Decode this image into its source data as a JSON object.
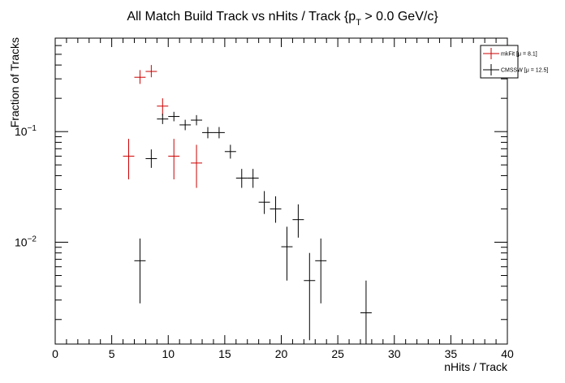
{
  "chart_data": {
    "type": "scatter",
    "title_main": "All Match Build Track vs nHits / Track {p",
    "title_sub": "T",
    "title_end": " > 0.0 GeV/c}",
    "xlabel": "nHits / Track",
    "ylabel": "Fraction of Tracks",
    "xlim": [
      0,
      40
    ],
    "ylim": [
      0.0012,
      0.7
    ],
    "yscale": "log",
    "x_ticks": [
      0,
      5,
      10,
      15,
      20,
      25,
      30,
      35,
      40
    ],
    "x_tick_labels": [
      "0",
      "5",
      "10",
      "15",
      "20",
      "25",
      "30",
      "35",
      "40"
    ],
    "y_major": [
      {
        "value": 0.1,
        "base": "10",
        "exp": "−1"
      },
      {
        "value": 0.01,
        "base": "10",
        "exp": "−2"
      }
    ],
    "legend_position": "top-right",
    "series": [
      {
        "name": "mkFit",
        "legend_stat": "[μ =  8.1]",
        "color": "#cc0000",
        "points": [
          {
            "x": 6.5,
            "y": 0.06,
            "ylo": 0.037,
            "yhi": 0.086
          },
          {
            "x": 7.5,
            "y": 0.31,
            "ylo": 0.27,
            "yhi": 0.36
          },
          {
            "x": 8.5,
            "y": 0.35,
            "ylo": 0.31,
            "yhi": 0.4
          },
          {
            "x": 9.5,
            "y": 0.17,
            "ylo": 0.14,
            "yhi": 0.2
          },
          {
            "x": 10.5,
            "y": 0.06,
            "ylo": 0.037,
            "yhi": 0.086
          },
          {
            "x": 12.5,
            "y": 0.052,
            "ylo": 0.031,
            "yhi": 0.076
          }
        ]
      },
      {
        "name": "CMSSW",
        "legend_stat": "[μ = 12.5]",
        "color": "#000000",
        "points": [
          {
            "x": 7.5,
            "y": 0.0068,
            "ylo": 0.0028,
            "yhi": 0.0108
          },
          {
            "x": 8.5,
            "y": 0.057,
            "ylo": 0.047,
            "yhi": 0.069
          },
          {
            "x": 9.5,
            "y": 0.13,
            "ylo": 0.117,
            "yhi": 0.145
          },
          {
            "x": 10.5,
            "y": 0.137,
            "ylo": 0.124,
            "yhi": 0.151
          },
          {
            "x": 11.5,
            "y": 0.115,
            "ylo": 0.103,
            "yhi": 0.128
          },
          {
            "x": 12.5,
            "y": 0.127,
            "ylo": 0.114,
            "yhi": 0.141
          },
          {
            "x": 13.5,
            "y": 0.098,
            "ylo": 0.087,
            "yhi": 0.11
          },
          {
            "x": 14.5,
            "y": 0.098,
            "ylo": 0.087,
            "yhi": 0.11
          },
          {
            "x": 15.5,
            "y": 0.066,
            "ylo": 0.057,
            "yhi": 0.076
          },
          {
            "x": 16.5,
            "y": 0.038,
            "ylo": 0.031,
            "yhi": 0.046
          },
          {
            "x": 17.5,
            "y": 0.038,
            "ylo": 0.031,
            "yhi": 0.046
          },
          {
            "x": 18.5,
            "y": 0.023,
            "ylo": 0.018,
            "yhi": 0.029
          },
          {
            "x": 19.5,
            "y": 0.02,
            "ylo": 0.015,
            "yhi": 0.026
          },
          {
            "x": 20.5,
            "y": 0.0091,
            "ylo": 0.0045,
            "yhi": 0.0138
          },
          {
            "x": 21.5,
            "y": 0.016,
            "ylo": 0.011,
            "yhi": 0.022
          },
          {
            "x": 22.5,
            "y": 0.0045,
            "ylo": 0.0013,
            "yhi": 0.008
          },
          {
            "x": 23.5,
            "y": 0.0068,
            "ylo": 0.0028,
            "yhi": 0.0108
          },
          {
            "x": 27.5,
            "y": 0.0023,
            "ylo": 0.0012,
            "yhi": 0.0045
          }
        ]
      }
    ]
  }
}
